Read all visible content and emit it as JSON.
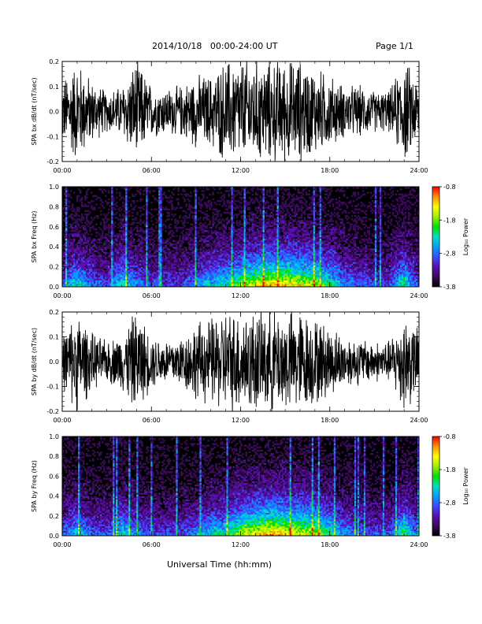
{
  "header": {
    "title": "2014/10/18   00:00-24:00 UT",
    "page": "Page 1/1"
  },
  "x_axis_label": "Universal Time (hh:mm)",
  "chart_data": [
    {
      "type": "line",
      "ylabel": "SPA bx dB/dt (nT/sec)",
      "xlim": [
        0,
        24
      ],
      "ylim": [
        -0.2,
        0.2
      ],
      "x_tick_labels": [
        "00:00",
        "06:00",
        "12:00",
        "18:00",
        "24:00"
      ],
      "y_tick_labels": [
        "-0.2",
        "-0.1",
        "0.0",
        "0.1",
        "0.2"
      ],
      "y_tick_values": [
        -0.2,
        -0.1,
        0.0,
        0.1,
        0.2
      ],
      "x_tick_hours": [
        0,
        6,
        12,
        18,
        24
      ],
      "envelope": {
        "hours": [
          0,
          1,
          2,
          3,
          4,
          5,
          6,
          7,
          8,
          9,
          10,
          11,
          12,
          13,
          14,
          15,
          16,
          17,
          18,
          19,
          20,
          21,
          22,
          23,
          24
        ],
        "amplitude": [
          0.12,
          0.2,
          0.12,
          0.08,
          0.1,
          0.2,
          0.1,
          0.09,
          0.1,
          0.14,
          0.14,
          0.2,
          0.2,
          0.2,
          0.2,
          0.2,
          0.2,
          0.17,
          0.14,
          0.1,
          0.1,
          0.08,
          0.08,
          0.2,
          0.12
        ]
      }
    },
    {
      "type": "heatmap",
      "ylabel": "SPA bx Freq (Hz)",
      "xlim": [
        0,
        24
      ],
      "ylim": [
        0,
        1.0
      ],
      "x_tick_labels": [
        "00:00",
        "06:00",
        "12:00",
        "18:00",
        "24:00"
      ],
      "y_tick_labels": [
        "0.0",
        "0.2",
        "0.4",
        "0.6",
        "0.8",
        "1.0"
      ],
      "y_tick_values": [
        0,
        0.2,
        0.4,
        0.6,
        0.8,
        1.0
      ],
      "x_tick_hours": [
        0,
        6,
        12,
        18,
        24
      ],
      "colorbar": {
        "label": "Log₁₀ Power",
        "range": [
          -3.8,
          -0.8
        ],
        "tick_labels": [
          "-0.8",
          "-1.8",
          "-2.8",
          "-3.8"
        ],
        "colors": [
          "#000000",
          "#3a0a5a",
          "#5a0fb4",
          "#3c4cff",
          "#00a0ff",
          "#00e0c0",
          "#00e000",
          "#a0f000",
          "#ffff00",
          "#ff9000",
          "#ff0000"
        ]
      },
      "activity": {
        "hours": [
          0,
          1,
          2,
          3,
          4,
          5,
          6,
          7,
          8,
          9,
          10,
          11,
          12,
          13,
          14,
          15,
          16,
          17,
          18,
          19,
          20,
          21,
          22,
          23,
          24
        ],
        "level": [
          0.35,
          0.55,
          0.35,
          0.3,
          0.55,
          0.4,
          0.3,
          0.3,
          0.3,
          0.4,
          0.5,
          0.55,
          0.7,
          0.8,
          0.85,
          0.85,
          0.8,
          0.75,
          0.6,
          0.4,
          0.35,
          0.3,
          0.3,
          0.6,
          0.3
        ]
      }
    },
    {
      "type": "line",
      "ylabel": "SPA by dB/dt (nT/sec)",
      "xlim": [
        0,
        24
      ],
      "ylim": [
        -0.2,
        0.2
      ],
      "x_tick_labels": [
        "00:00",
        "06:00",
        "12:00",
        "18:00",
        "24:00"
      ],
      "y_tick_labels": [
        "-0.2",
        "-0.1",
        "0.0",
        "0.1",
        "0.2"
      ],
      "y_tick_values": [
        -0.2,
        -0.1,
        0.0,
        0.1,
        0.2
      ],
      "x_tick_hours": [
        0,
        6,
        12,
        18,
        24
      ],
      "envelope": {
        "hours": [
          0,
          1,
          2,
          3,
          4,
          5,
          6,
          7,
          8,
          9,
          10,
          11,
          12,
          13,
          14,
          15,
          16,
          17,
          18,
          19,
          20,
          21,
          22,
          23,
          24
        ],
        "amplitude": [
          0.1,
          0.2,
          0.11,
          0.08,
          0.11,
          0.2,
          0.1,
          0.09,
          0.1,
          0.15,
          0.17,
          0.2,
          0.2,
          0.2,
          0.2,
          0.2,
          0.2,
          0.17,
          0.14,
          0.1,
          0.09,
          0.08,
          0.08,
          0.2,
          0.12
        ]
      }
    },
    {
      "type": "heatmap",
      "ylabel": "SPA by Freq (Hz)",
      "xlim": [
        0,
        24
      ],
      "ylim": [
        0,
        1.0
      ],
      "x_tick_labels": [
        "00:00",
        "06:00",
        "12:00",
        "18:00",
        "24:00"
      ],
      "y_tick_labels": [
        "0.0",
        "0.2",
        "0.4",
        "0.6",
        "0.8",
        "1.0"
      ],
      "y_tick_values": [
        0,
        0.2,
        0.4,
        0.6,
        0.8,
        1.0
      ],
      "x_tick_hours": [
        0,
        6,
        12,
        18,
        24
      ],
      "colorbar": {
        "label": "Log₁₀ Power",
        "range": [
          -3.8,
          -0.8
        ],
        "tick_labels": [
          "-0.8",
          "-1.8",
          "-2.8",
          "-3.8"
        ],
        "colors": [
          "#000000",
          "#3a0a5a",
          "#5a0fb4",
          "#3c4cff",
          "#00a0ff",
          "#00e0c0",
          "#00e000",
          "#a0f000",
          "#ffff00",
          "#ff9000",
          "#ff0000"
        ]
      },
      "activity": {
        "hours": [
          0,
          1,
          2,
          3,
          4,
          5,
          6,
          7,
          8,
          9,
          10,
          11,
          12,
          13,
          14,
          15,
          16,
          17,
          18,
          19,
          20,
          21,
          22,
          23,
          24
        ],
        "level": [
          0.35,
          0.5,
          0.35,
          0.3,
          0.55,
          0.4,
          0.3,
          0.3,
          0.3,
          0.4,
          0.5,
          0.55,
          0.75,
          0.85,
          0.9,
          0.85,
          0.8,
          0.75,
          0.6,
          0.4,
          0.35,
          0.3,
          0.3,
          0.65,
          0.3
        ]
      }
    }
  ]
}
